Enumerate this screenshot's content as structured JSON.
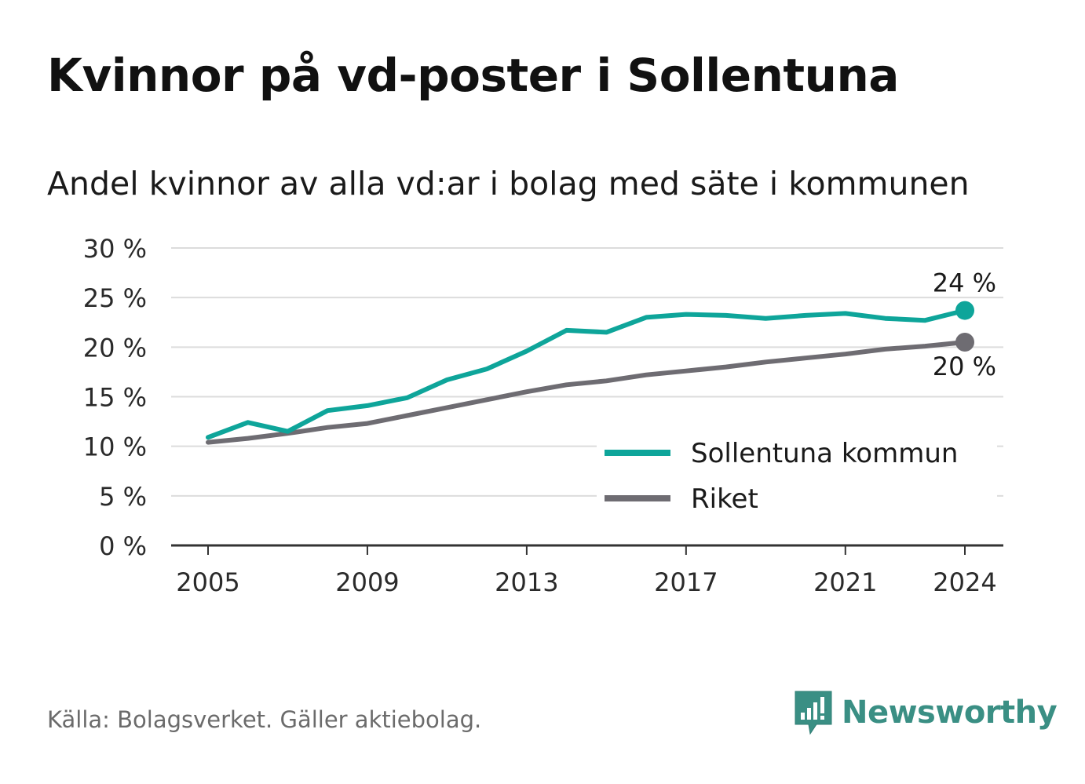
{
  "header": {
    "title": "Kvinnor på vd-poster i Sollentuna",
    "subtitle": "Andel kvinnor av alla vd:ar i bolag med säte i kommunen"
  },
  "footer": {
    "source": "Källa: Bolagsverket. Gäller aktiebolag.",
    "brand": "Newsworthy",
    "brand_icon": "newsworthy-logo-icon",
    "brand_color": "#3a8f84"
  },
  "chart_data": {
    "type": "line",
    "title": "Kvinnor på vd-poster i Sollentuna",
    "subtitle": "Andel kvinnor av alla vd:ar i bolag med säte i kommunen",
    "xlabel": "",
    "ylabel": "",
    "ylim": [
      0,
      30
    ],
    "xlim": [
      2005,
      2024
    ],
    "y_ticks": [
      0,
      5,
      10,
      15,
      20,
      25,
      30
    ],
    "y_tick_labels": [
      "0 %",
      "5 %",
      "10 %",
      "15 %",
      "20 %",
      "25 %",
      "30 %"
    ],
    "x_ticks": [
      2005,
      2009,
      2013,
      2017,
      2021,
      2024
    ],
    "x_tick_labels": [
      "2005",
      "2009",
      "2013",
      "2017",
      "2021",
      "2024"
    ],
    "grid": true,
    "legend_position": "bottom-right",
    "x": [
      2005,
      2006,
      2007,
      2008,
      2009,
      2010,
      2011,
      2012,
      2013,
      2014,
      2015,
      2016,
      2017,
      2018,
      2019,
      2020,
      2021,
      2022,
      2023,
      2024
    ],
    "series": [
      {
        "name": "Sollentuna kommun",
        "color": "#0ea59a",
        "values": [
          10.9,
          12.4,
          11.5,
          13.6,
          14.1,
          14.9,
          16.7,
          17.8,
          19.6,
          21.7,
          21.5,
          23.0,
          23.3,
          23.2,
          22.9,
          23.2,
          23.4,
          22.9,
          22.7,
          23.7
        ],
        "end_label": "24 %"
      },
      {
        "name": "Riket",
        "color": "#6e6c72",
        "values": [
          10.4,
          10.8,
          11.3,
          11.9,
          12.3,
          13.1,
          13.9,
          14.7,
          15.5,
          16.2,
          16.6,
          17.2,
          17.6,
          18.0,
          18.5,
          18.9,
          19.3,
          19.8,
          20.1,
          20.5
        ],
        "end_label": "20 %"
      }
    ]
  }
}
